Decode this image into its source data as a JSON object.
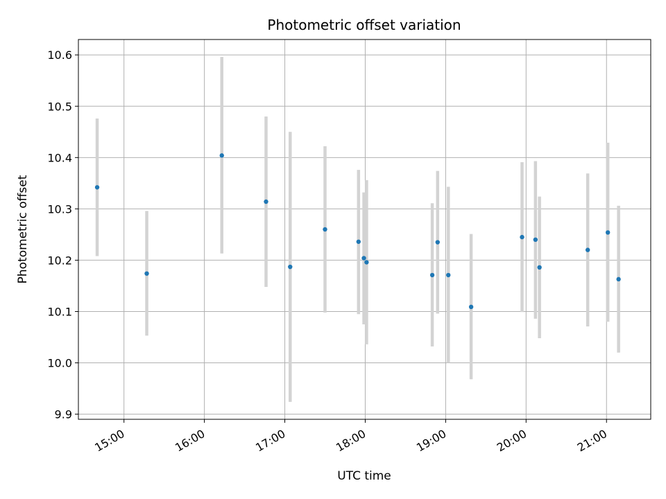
{
  "chart_data": {
    "type": "scatter",
    "title": "Photometric offset variation",
    "xlabel": "UTC time",
    "ylabel": "Photometric offset",
    "x_tick_labels": [
      "15:00",
      "16:00",
      "17:00",
      "18:00",
      "19:00",
      "20:00",
      "21:00"
    ],
    "x_ticks": [
      "15:00",
      "16:00",
      "17:00",
      "18:00",
      "19:00",
      "20:00",
      "21:00"
    ],
    "xlim": [
      "14:26",
      "21:33"
    ],
    "y_tick_labels": [
      "9.9",
      "10.0",
      "10.1",
      "10.2",
      "10.3",
      "10.4",
      "10.5",
      "10.6"
    ],
    "y_ticks": [
      9.9,
      10.0,
      10.1,
      10.2,
      10.3,
      10.4,
      10.5,
      10.6
    ],
    "ylim": [
      9.89,
      10.63
    ],
    "grid": true,
    "series": [
      {
        "color": "#1f77b4",
        "errorbar_color": "#d3d3d3",
        "points": [
          {
            "x": "14:40",
            "y": 10.342,
            "lo": 10.208,
            "hi": 10.476
          },
          {
            "x": "15:17",
            "y": 10.174,
            "lo": 10.053,
            "hi": 10.296
          },
          {
            "x": "16:13",
            "y": 10.404,
            "lo": 10.213,
            "hi": 10.596
          },
          {
            "x": "16:46",
            "y": 10.314,
            "lo": 10.148,
            "hi": 10.48
          },
          {
            "x": "17:04",
            "y": 10.187,
            "lo": 9.924,
            "hi": 10.45
          },
          {
            "x": "17:30",
            "y": 10.26,
            "lo": 10.098,
            "hi": 10.422
          },
          {
            "x": "17:55",
            "y": 10.236,
            "lo": 10.095,
            "hi": 10.376
          },
          {
            "x": "17:59",
            "y": 10.204,
            "lo": 10.075,
            "hi": 10.332
          },
          {
            "x": "18:01",
            "y": 10.196,
            "lo": 10.036,
            "hi": 10.356
          },
          {
            "x": "18:50",
            "y": 10.171,
            "lo": 10.032,
            "hi": 10.311
          },
          {
            "x": "18:54",
            "y": 10.235,
            "lo": 10.096,
            "hi": 10.374
          },
          {
            "x": "19:02",
            "y": 10.171,
            "lo": 10.0,
            "hi": 10.343
          },
          {
            "x": "19:19",
            "y": 10.109,
            "lo": 9.968,
            "hi": 10.251
          },
          {
            "x": "19:57",
            "y": 10.245,
            "lo": 10.099,
            "hi": 10.391
          },
          {
            "x": "20:07",
            "y": 10.24,
            "lo": 10.086,
            "hi": 10.393
          },
          {
            "x": "20:10",
            "y": 10.186,
            "lo": 10.048,
            "hi": 10.324
          },
          {
            "x": "20:46",
            "y": 10.22,
            "lo": 10.071,
            "hi": 10.369
          },
          {
            "x": "21:01",
            "y": 10.254,
            "lo": 10.08,
            "hi": 10.429
          },
          {
            "x": "21:09",
            "y": 10.163,
            "lo": 10.02,
            "hi": 10.306
          }
        ]
      }
    ]
  }
}
